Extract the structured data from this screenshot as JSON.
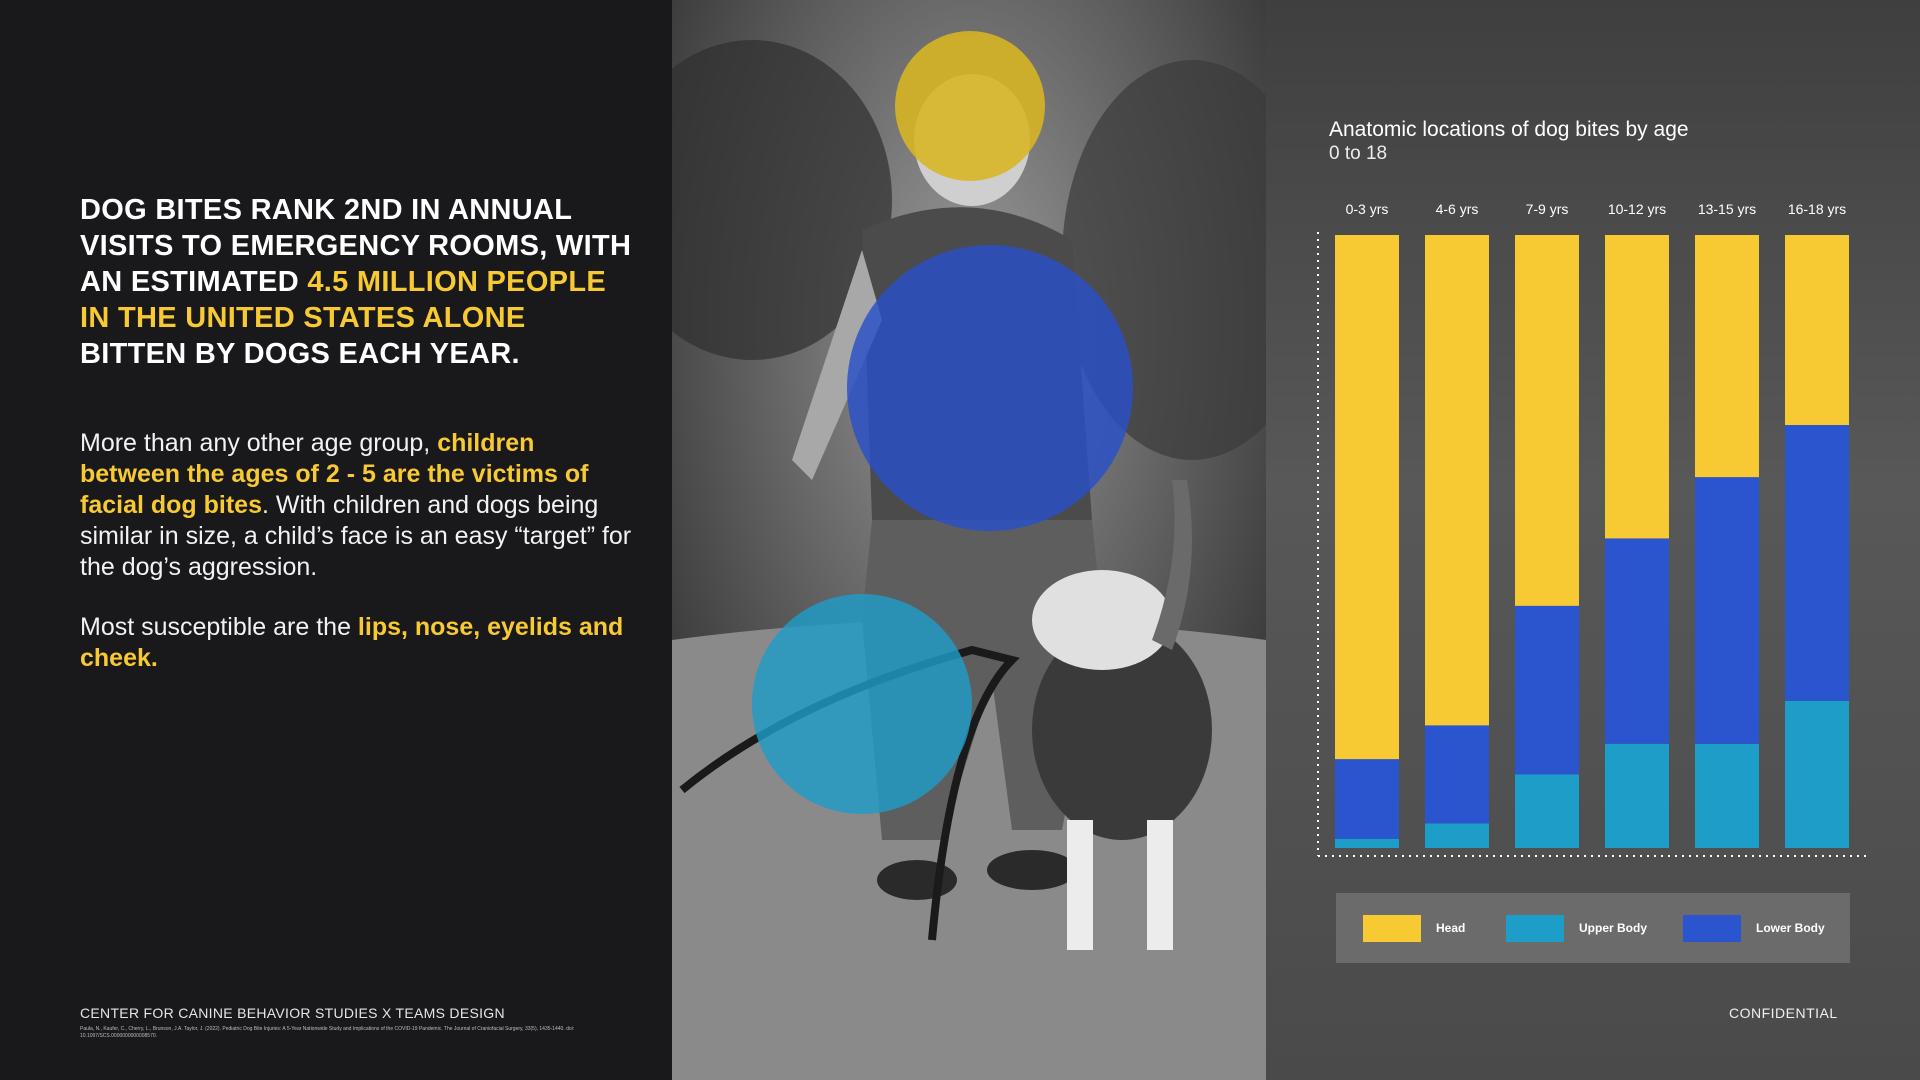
{
  "headline": {
    "part1": "Dog bites rank 2nd in annual visits to emergency rooms, with an estimated ",
    "highlight": "4.5 million people in the United States alone",
    "part2": " bitten by dogs each year."
  },
  "paragraph1": {
    "part1": "More than any other age group, ",
    "highlight": "children between the ages of 2 - 5 are the victims of facial dog bites",
    "part2": ". With children and dogs being similar in size, a child’s face is an easy “target” for the dog’s aggression."
  },
  "paragraph2": {
    "part1": "Most susceptible are the ",
    "highlight": "lips, nose, eyelids and cheek."
  },
  "footer": {
    "org": "CENTER FOR CANINE BEHAVIOR STUDIES X TEAMS DESIGN",
    "citation": "Paula, N., Kaufer, C., Cherry, L., Brunson, J.A. Taylor, J. (2022). Pediatric Dog Bite Injuries: A 5-Year Nationwide Study and Implications of the COVID-19 Pandemic. The Journal of Craniofacial Surgery, 33(5), 1435-1440. doi: 10.1097/SCS.0000000000008570."
  },
  "confidential": "CONFIDENTIAL",
  "colors": {
    "head": "#f7c932",
    "upper_body": "#1c9ec8",
    "lower_body": "#2b55cf",
    "highlight_text": "#f7c932",
    "circle_yellow": "#d8b622",
    "circle_blue": "#2a4fc8",
    "circle_cyan": "#1e9cc8"
  },
  "chart_data": {
    "type": "bar",
    "stacked": true,
    "title": "Anatomic locations of dog bites by age",
    "subtitle": "0 to 18",
    "categories": [
      "0-3 yrs",
      "4-6 yrs",
      "7-9 yrs",
      "10-12 yrs",
      "13-15 yrs",
      "16-18 yrs"
    ],
    "series": [
      {
        "name": "Upper Body",
        "color": "#1c9ec8",
        "values": [
          1.5,
          4,
          12,
          17,
          17,
          24
        ]
      },
      {
        "name": "Lower Body",
        "color": "#2b55cf",
        "values": [
          13,
          16,
          27.5,
          33.5,
          43.5,
          45
        ]
      },
      {
        "name": "Head",
        "color": "#f7c932",
        "values": [
          85.5,
          80,
          60.5,
          49.5,
          39.5,
          31
        ]
      }
    ],
    "ylim": [
      0,
      100
    ],
    "grid": false,
    "legend": {
      "position": "bottom",
      "entries": [
        {
          "label": "Head",
          "color": "#f7c932"
        },
        {
          "label": "Upper Body",
          "color": "#1c9ec8"
        },
        {
          "label": "Lower Body",
          "color": "#2b55cf"
        }
      ]
    }
  }
}
